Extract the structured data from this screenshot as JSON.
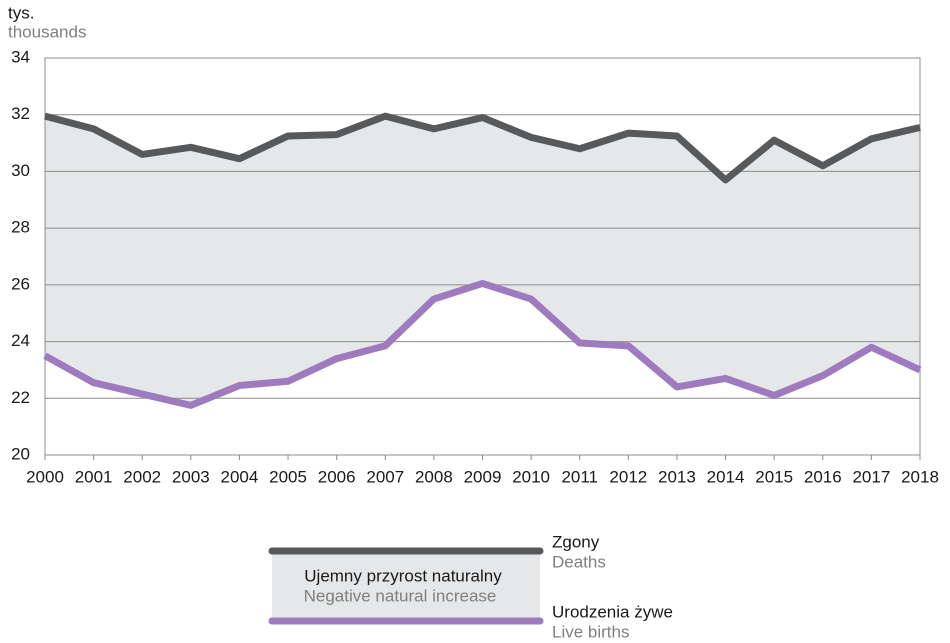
{
  "chart_data": {
    "type": "line",
    "ylabel": {
      "pl": "tys.",
      "en": "thousands"
    },
    "x": [
      2000,
      2001,
      2002,
      2003,
      2004,
      2005,
      2006,
      2007,
      2008,
      2009,
      2010,
      2011,
      2012,
      2013,
      2014,
      2015,
      2016,
      2017,
      2018
    ],
    "xlim": [
      2000,
      2018
    ],
    "xticks": [
      2000,
      2001,
      2002,
      2003,
      2004,
      2005,
      2006,
      2007,
      2008,
      2009,
      2010,
      2011,
      2012,
      2013,
      2014,
      2015,
      2016,
      2017,
      2018
    ],
    "ylim": [
      20,
      34
    ],
    "yticks": [
      20,
      22,
      24,
      26,
      28,
      30,
      32,
      34
    ],
    "grid": true,
    "area_color": "#e6e7e8",
    "area_label": {
      "pl": "Ujemny przyrost naturalny",
      "en": "Negative natural increase"
    },
    "series": [
      {
        "name": "Zgony",
        "name_en": "Deaths",
        "color": "#58595b",
        "values": [
          31.95,
          31.5,
          30.6,
          30.85,
          30.45,
          31.25,
          31.3,
          31.95,
          31.5,
          31.9,
          31.2,
          30.8,
          31.35,
          31.25,
          29.7,
          31.1,
          30.2,
          31.15,
          31.55
        ]
      },
      {
        "name": "Urodzenia żywe",
        "name_en": "Live births",
        "color": "#9e7bbf",
        "values": [
          23.5,
          22.55,
          22.15,
          21.75,
          22.45,
          22.6,
          23.4,
          23.85,
          25.5,
          26.05,
          25.5,
          23.95,
          23.85,
          22.4,
          22.7,
          22.1,
          22.8,
          23.8,
          23.0
        ]
      }
    ]
  }
}
